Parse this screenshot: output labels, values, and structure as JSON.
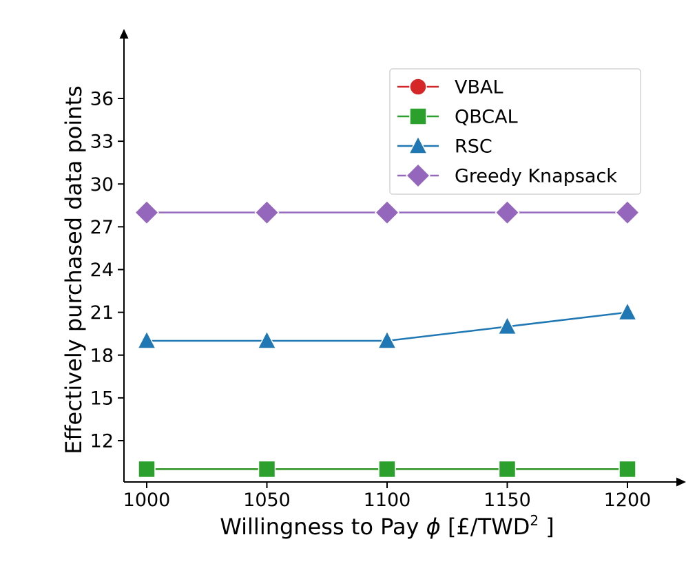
{
  "chart_data": {
    "type": "line",
    "title": "",
    "xlabel": "Willingness to Pay",
    "xlabel_symbol": "ϕ",
    "xlabel_unit_prefix": "[£/TWD",
    "xlabel_unit_exp": "2",
    "xlabel_unit_suffix": " ]",
    "ylabel": "Effectively purchased data points",
    "x": [
      1000,
      1050,
      1100,
      1150,
      1200
    ],
    "x_ticks": [
      "1000",
      "1050",
      "1100",
      "1150",
      "1200"
    ],
    "xlim": [
      990,
      1225
    ],
    "ylim": [
      9.2,
      40.5
    ],
    "y_ticks": [
      12,
      15,
      18,
      21,
      24,
      27,
      30,
      33,
      36
    ],
    "y_tick_labels": [
      "12",
      "15",
      "18",
      "21",
      "24",
      "27",
      "30",
      "33",
      "36"
    ],
    "grid": false,
    "legend_placement": "top-right",
    "series": [
      {
        "name": "VBAL",
        "values": [
          10,
          10,
          10,
          10,
          10
        ],
        "color": "#d62728",
        "marker": "circle"
      },
      {
        "name": "QBCAL",
        "values": [
          10,
          10,
          10,
          10,
          10
        ],
        "color": "#2ca02c",
        "marker": "square"
      },
      {
        "name": "RSC",
        "values": [
          19,
          19,
          19,
          20,
          21
        ],
        "color": "#1f77b4",
        "marker": "triangle"
      },
      {
        "name": "Greedy Knapsack",
        "values": [
          28,
          28,
          28,
          28,
          28
        ],
        "color": "#9467bd",
        "marker": "diamond"
      }
    ]
  }
}
